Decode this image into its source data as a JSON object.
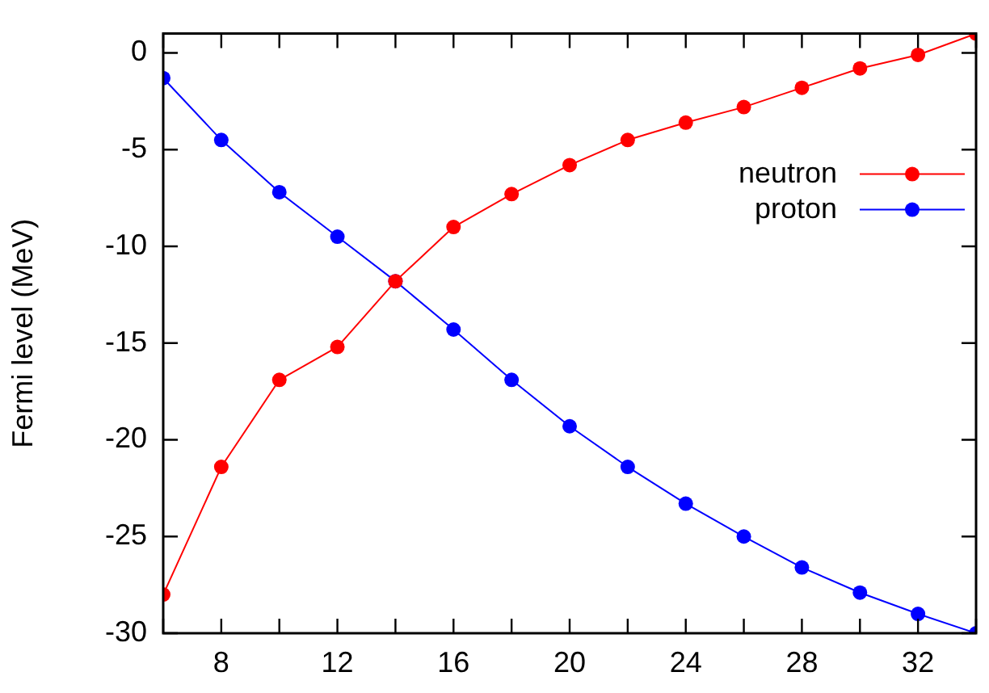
{
  "chart_data": {
    "type": "line",
    "ylabel": "Fermi level (MeV)",
    "x": [
      6,
      8,
      10,
      12,
      14,
      16,
      18,
      20,
      22,
      24,
      26,
      28,
      30,
      32,
      34
    ],
    "series": [
      {
        "name": "neutron",
        "color": "#ff0000",
        "values": [
          -28.0,
          -21.4,
          -16.9,
          -15.2,
          -11.8,
          -9.0,
          -7.3,
          -5.8,
          -4.5,
          -3.6,
          -2.8,
          -1.8,
          -0.8,
          -0.1,
          1.0
        ]
      },
      {
        "name": "proton",
        "color": "#0000ff",
        "values": [
          -1.3,
          -4.5,
          -7.2,
          -9.5,
          -11.8,
          -14.3,
          -16.9,
          -19.3,
          -21.4,
          -23.3,
          -25.0,
          -26.6,
          -27.9,
          -29.0,
          -30.0
        ]
      }
    ],
    "xlim": [
      6,
      34
    ],
    "xticks": [
      {
        "value": 6,
        "label": null
      },
      8,
      {
        "value": 10,
        "label": null
      },
      12,
      {
        "value": 14,
        "label": null
      },
      16,
      {
        "value": 18,
        "label": null
      },
      20,
      {
        "value": 22,
        "label": null
      },
      24,
      {
        "value": 26,
        "label": null
      },
      28,
      {
        "value": 30,
        "label": null
      },
      32,
      {
        "value": 34,
        "label": null
      }
    ],
    "ylim": [
      -30,
      1
    ],
    "yticks": [
      0,
      -5,
      -10,
      -15,
      -20,
      -25,
      -30
    ],
    "legend": "top right",
    "marker": "circle",
    "line_style": "solid",
    "grid": false
  }
}
